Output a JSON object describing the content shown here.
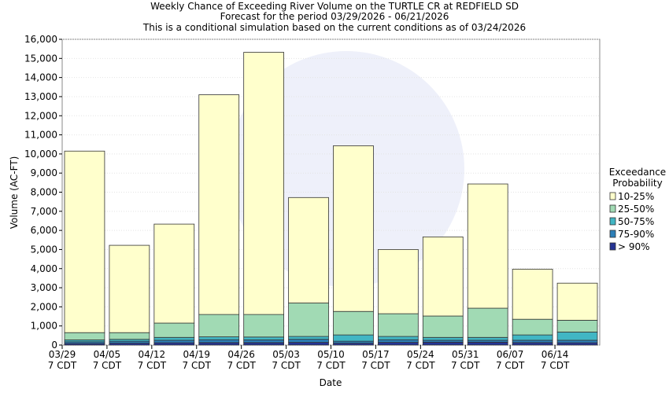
{
  "chart_data": {
    "type": "stacked_bar",
    "title": "Weekly Chance of Exceeding River Volume on the TURTLE CR at REDFIELD SD",
    "subtitle": "Forecast for the period 03/29/2026 - 06/21/2026",
    "note": "This is a conditional simulation based on the current conditions as of 03/24/2026",
    "x_label": "Date",
    "y_label": "Volume (AC-FT)",
    "legend_title": "Exceedance Probability",
    "legend_position": "right",
    "grid": true,
    "categories": [
      "03/29\n7 CDT",
      "04/05\n7 CDT",
      "04/12\n7 CDT",
      "04/19\n7 CDT",
      "04/26\n7 CDT",
      "05/03\n7 CDT",
      "05/10\n7 CDT",
      "05/17\n7 CDT",
      "05/24\n7 CDT",
      "05/31\n7 CDT",
      "06/07\n7 CDT",
      "06/14\n7 CDT"
    ],
    "series": [
      {
        "name": "10-25%",
        "color": "#ffffcc",
        "values": [
          9500,
          4570,
          5180,
          11500,
          13720,
          5520,
          8670,
          3360,
          4140,
          6500,
          2620,
          1940
        ]
      },
      {
        "name": "25-50%",
        "color": "#a1dab4",
        "values": [
          380,
          350,
          750,
          1170,
          1180,
          1750,
          1230,
          1190,
          1120,
          1530,
          820,
          620
        ]
      },
      {
        "name": "50-75%",
        "color": "#41b6c4",
        "values": [
          100,
          100,
          150,
          150,
          150,
          150,
          330,
          170,
          150,
          150,
          280,
          430
        ]
      },
      {
        "name": "75-90%",
        "color": "#2c7fb8",
        "values": [
          90,
          100,
          130,
          150,
          140,
          160,
          100,
          140,
          100,
          100,
          120,
          130
        ]
      },
      {
        "name": "> 90%",
        "color": "#253494",
        "values": [
          80,
          100,
          120,
          130,
          130,
          140,
          100,
          140,
          150,
          150,
          130,
          120
        ]
      }
    ],
    "ylim": [
      0,
      16000
    ],
    "yticks": [
      0,
      {
        "value": 1000,
        "label": "1,000"
      },
      {
        "value": 2000,
        "label": "2,000"
      },
      {
        "value": 3000,
        "label": "3,000"
      },
      {
        "value": 4000,
        "label": "4,000"
      },
      {
        "value": 5000,
        "label": "5,000"
      },
      {
        "value": 6000,
        "label": "6,000"
      },
      {
        "value": 7000,
        "label": "7,000"
      },
      {
        "value": 8000,
        "label": "8,000"
      },
      {
        "value": 9000,
        "label": "9,000"
      },
      {
        "value": 10000,
        "label": "10,000"
      },
      {
        "value": 11000,
        "label": "11,000"
      },
      {
        "value": 12000,
        "label": "12,000"
      },
      {
        "value": 13000,
        "label": "13,000"
      },
      {
        "value": 14000,
        "label": "14,000"
      },
      {
        "value": 15000,
        "label": "15,000"
      },
      {
        "value": 16000,
        "label": "16,000"
      }
    ]
  }
}
